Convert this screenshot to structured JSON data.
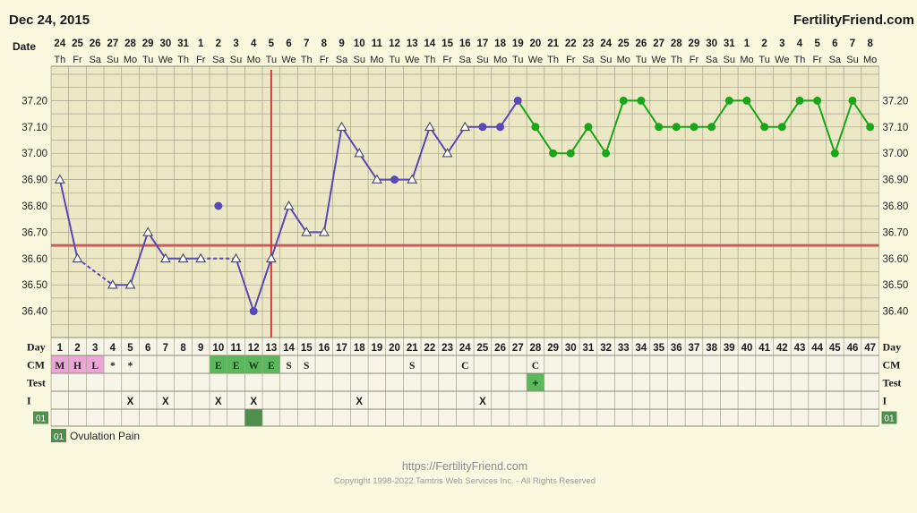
{
  "header": {
    "date": "Dec 24, 2015",
    "brand": "FertilityFriend.com"
  },
  "labels": {
    "date": "Date",
    "day": "Day",
    "cm": "CM",
    "test": "Test",
    "intercourse": "I",
    "custom_code": "01"
  },
  "legend": {
    "code": "01",
    "text": "Ovulation Pain"
  },
  "footer": {
    "url": "https://FertilityFriend.com",
    "copyright": "Copyright 1998-2022 Tamtris Web Services Inc. - All Rights Reserved"
  },
  "colors": {
    "background": "#fbf8e0",
    "grid_cell": "#ece8c6",
    "grid_line": "#a7a48c",
    "pre_ovulation_line": "#5a47b8",
    "post_ovulation_line": "#1aa51a",
    "coverline": "#cf5a5a",
    "ovulation_marker": "#cf3b3b",
    "cm_menstrual": "#e9a6d6",
    "cm_eggwhite": "#5cb85c",
    "custom_marker": "#4e8f4e"
  },
  "chart_data": {
    "type": "line",
    "title": "",
    "ylim": [
      36.3,
      37.3
    ],
    "yticks": [
      36.4,
      36.5,
      36.6,
      36.7,
      36.8,
      36.9,
      37.0,
      37.1,
      37.2
    ],
    "ytick_labels": [
      "36.40",
      "36.50",
      "36.60",
      "36.70",
      "36.80",
      "36.90",
      "37.00",
      "37.10",
      "37.20"
    ],
    "coverline": 36.65,
    "ovulation_day": 13,
    "cycle_days": [
      1,
      2,
      3,
      4,
      5,
      6,
      7,
      8,
      9,
      10,
      11,
      12,
      13,
      14,
      15,
      16,
      17,
      18,
      19,
      20,
      21,
      22,
      23,
      24,
      25,
      26,
      27,
      28,
      29,
      30,
      31,
      32,
      33,
      34,
      35,
      36,
      37,
      38,
      39,
      40,
      41,
      42,
      43,
      44,
      45,
      46,
      47
    ],
    "dates": [
      "24",
      "25",
      "26",
      "27",
      "28",
      "29",
      "30",
      "31",
      "1",
      "2",
      "3",
      "4",
      "5",
      "6",
      "7",
      "8",
      "9",
      "10",
      "11",
      "12",
      "13",
      "14",
      "15",
      "16",
      "17",
      "18",
      "19",
      "20",
      "21",
      "22",
      "23",
      "24",
      "25",
      "26",
      "27",
      "28",
      "29",
      "30",
      "31",
      "1",
      "2",
      "3",
      "4",
      "5",
      "6",
      "7",
      "8"
    ],
    "weekdays": [
      "Th",
      "Fr",
      "Sa",
      "Su",
      "Mo",
      "Tu",
      "We",
      "Th",
      "Fr",
      "Sa",
      "Su",
      "Mo",
      "Tu",
      "We",
      "Th",
      "Fr",
      "Sa",
      "Su",
      "Mo",
      "Tu",
      "We",
      "Th",
      "Fr",
      "Sa",
      "Su",
      "Mo",
      "Tu",
      "We",
      "Th",
      "Fr",
      "Sa",
      "Su",
      "Mo",
      "Tu",
      "We",
      "Th",
      "Fr",
      "Sa",
      "Su",
      "Mo",
      "Tu",
      "We",
      "Th",
      "Fr",
      "Sa",
      "Su",
      "Mo"
    ],
    "temperatures": [
      {
        "day": 1,
        "temp": 36.9,
        "marker": "triangle"
      },
      {
        "day": 2,
        "temp": 36.6,
        "marker": "triangle"
      },
      {
        "day": 4,
        "temp": 36.5,
        "marker": "triangle"
      },
      {
        "day": 5,
        "temp": 36.5,
        "marker": "triangle"
      },
      {
        "day": 6,
        "temp": 36.7,
        "marker": "triangle"
      },
      {
        "day": 7,
        "temp": 36.6,
        "marker": "triangle"
      },
      {
        "day": 8,
        "temp": 36.6,
        "marker": "triangle"
      },
      {
        "day": 9,
        "temp": 36.6,
        "marker": "triangle"
      },
      {
        "day": 10,
        "temp": 36.8,
        "marker": "dot",
        "discarded": true
      },
      {
        "day": 11,
        "temp": 36.6,
        "marker": "triangle"
      },
      {
        "day": 12,
        "temp": 36.4,
        "marker": "dot"
      },
      {
        "day": 13,
        "temp": 36.6,
        "marker": "triangle"
      },
      {
        "day": 14,
        "temp": 36.8,
        "marker": "triangle"
      },
      {
        "day": 15,
        "temp": 36.7,
        "marker": "triangle"
      },
      {
        "day": 16,
        "temp": 36.7,
        "marker": "triangle"
      },
      {
        "day": 17,
        "temp": 37.1,
        "marker": "triangle"
      },
      {
        "day": 18,
        "temp": 37.0,
        "marker": "triangle"
      },
      {
        "day": 19,
        "temp": 36.9,
        "marker": "triangle"
      },
      {
        "day": 20,
        "temp": 36.9,
        "marker": "dot"
      },
      {
        "day": 21,
        "temp": 36.9,
        "marker": "triangle"
      },
      {
        "day": 22,
        "temp": 37.1,
        "marker": "triangle"
      },
      {
        "day": 23,
        "temp": 37.0,
        "marker": "triangle"
      },
      {
        "day": 24,
        "temp": 37.1,
        "marker": "triangle"
      },
      {
        "day": 25,
        "temp": 37.1,
        "marker": "dot"
      },
      {
        "day": 26,
        "temp": 37.1,
        "marker": "dot"
      },
      {
        "day": 27,
        "temp": 37.2,
        "marker": "dot"
      },
      {
        "day": 28,
        "temp": 37.1,
        "marker": "dot"
      },
      {
        "day": 29,
        "temp": 37.0,
        "marker": "dot"
      },
      {
        "day": 30,
        "temp": 37.0,
        "marker": "dot"
      },
      {
        "day": 31,
        "temp": 37.1,
        "marker": "dot"
      },
      {
        "day": 32,
        "temp": 37.0,
        "marker": "dot"
      },
      {
        "day": 33,
        "temp": 37.2,
        "marker": "dot"
      },
      {
        "day": 34,
        "temp": 37.2,
        "marker": "dot"
      },
      {
        "day": 35,
        "temp": 37.1,
        "marker": "dot"
      },
      {
        "day": 36,
        "temp": 37.1,
        "marker": "dot"
      },
      {
        "day": 37,
        "temp": 37.1,
        "marker": "dot"
      },
      {
        "day": 38,
        "temp": 37.1,
        "marker": "dot"
      },
      {
        "day": 39,
        "temp": 37.2,
        "marker": "dot"
      },
      {
        "day": 40,
        "temp": 37.2,
        "marker": "dot"
      },
      {
        "day": 41,
        "temp": 37.1,
        "marker": "dot"
      },
      {
        "day": 42,
        "temp": 37.1,
        "marker": "dot"
      },
      {
        "day": 43,
        "temp": 37.2,
        "marker": "dot"
      },
      {
        "day": 44,
        "temp": 37.2,
        "marker": "dot"
      },
      {
        "day": 45,
        "temp": 37.0,
        "marker": "dot"
      },
      {
        "day": 46,
        "temp": 37.2,
        "marker": "dot"
      },
      {
        "day": 47,
        "temp": 37.1,
        "marker": "dot"
      }
    ],
    "dashed_segments": [
      [
        2,
        4
      ],
      [
        9,
        11
      ]
    ],
    "post_ovulation_from_day": 27,
    "cm": [
      {
        "day": 1,
        "value": "M",
        "style": "menstrual"
      },
      {
        "day": 2,
        "value": "H",
        "style": "menstrual"
      },
      {
        "day": 3,
        "value": "L",
        "style": "menstrual"
      },
      {
        "day": 4,
        "value": "*",
        "style": "none"
      },
      {
        "day": 5,
        "value": "*",
        "style": "none"
      },
      {
        "day": 10,
        "value": "E",
        "style": "eggwhite"
      },
      {
        "day": 11,
        "value": "E",
        "style": "eggwhite"
      },
      {
        "day": 12,
        "value": "W",
        "style": "eggwhite"
      },
      {
        "day": 13,
        "value": "E",
        "style": "eggwhite"
      },
      {
        "day": 14,
        "value": "S",
        "style": "none"
      },
      {
        "day": 15,
        "value": "S",
        "style": "none"
      },
      {
        "day": 21,
        "value": "S",
        "style": "none"
      },
      {
        "day": 24,
        "value": "C",
        "style": "none"
      },
      {
        "day": 28,
        "value": "C",
        "style": "none"
      }
    ],
    "tests": [
      {
        "day": 28,
        "value": "+"
      }
    ],
    "intercourse": [
      5,
      7,
      10,
      12,
      18,
      25
    ],
    "custom_01": [
      12
    ]
  }
}
